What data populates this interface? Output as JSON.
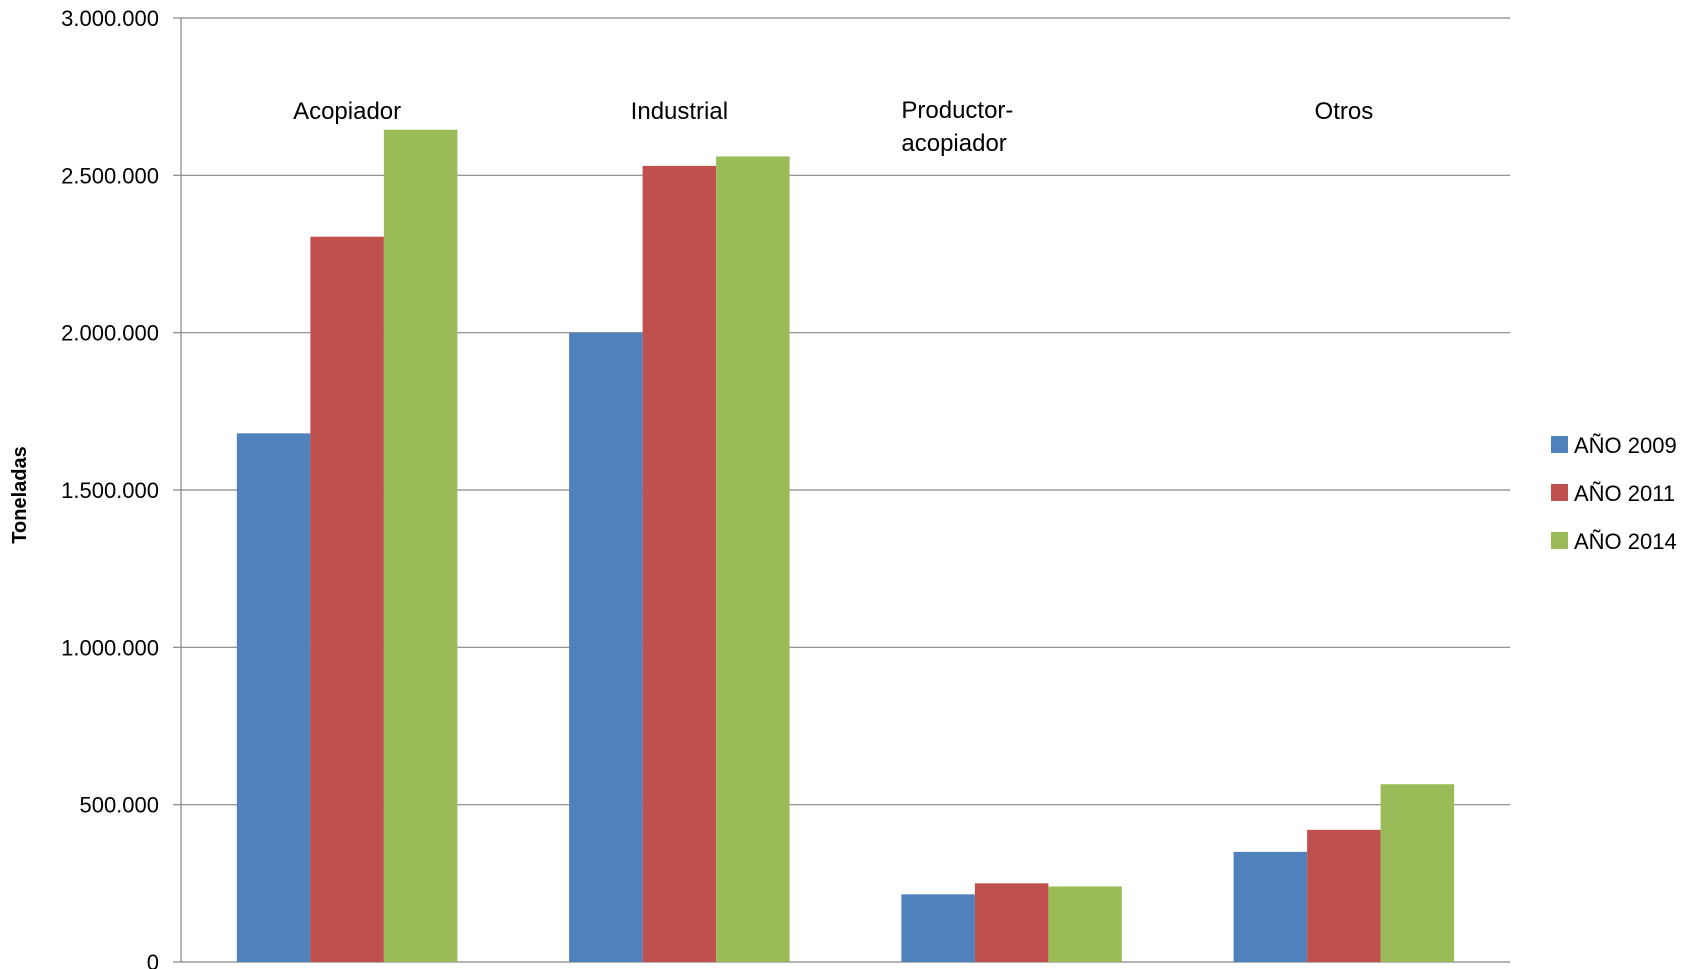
{
  "chart_data": {
    "type": "bar",
    "title": "",
    "xlabel": "",
    "ylabel": "Toneladas",
    "ylim": [
      0,
      3000000
    ],
    "yticks": [
      0,
      500000,
      1000000,
      1500000,
      2000000,
      2500000,
      3000000
    ],
    "ytick_labels": [
      "0",
      "500.000",
      "1.000.000",
      "1.500.000",
      "2.000.000",
      "2.500.000",
      "3.000.000"
    ],
    "grid": true,
    "legend_position": "right",
    "categories": [
      "Acopiador",
      "Industrial",
      "Productor-acopiador",
      "Otros"
    ],
    "category_label_lines": [
      [
        "Acopiador"
      ],
      [
        "Industrial"
      ],
      [
        "Productor-",
        "acopiador"
      ],
      [
        "Otros"
      ]
    ],
    "series": [
      {
        "name": "AÑO 2009",
        "color": "#4F81BD",
        "values": [
          1680000,
          2000000,
          215000,
          350000
        ]
      },
      {
        "name": "AÑO 2011",
        "color": "#C0504D",
        "values": [
          2305000,
          2530000,
          250000,
          420000
        ]
      },
      {
        "name": "AÑO 2014",
        "color": "#9BBB59",
        "values": [
          2645000,
          2560000,
          240000,
          565000
        ]
      }
    ]
  }
}
